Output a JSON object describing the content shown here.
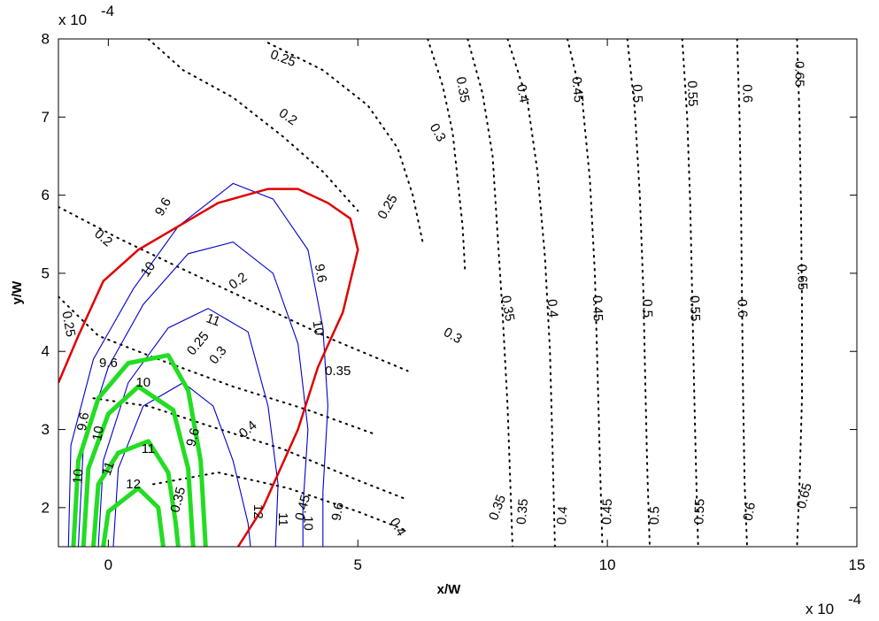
{
  "chart_data": {
    "type": "contour",
    "xlabel": "x/W",
    "ylabel": "y/W",
    "x_multiplier": "x 10",
    "x_multiplier_exp": "-4",
    "y_multiplier": "x 10",
    "y_multiplier_exp": "-4",
    "xlim": [
      -1.0,
      15.0
    ],
    "ylim": [
      1.5,
      8.0
    ],
    "x_ticks": [
      0,
      5,
      10,
      15
    ],
    "y_ticks": [
      2,
      3,
      4,
      5,
      6,
      7,
      8
    ],
    "grid": false,
    "colors": {
      "dotted_contours": "#000000",
      "blue_contours": "#0000cc",
      "red_curve": "#e00000",
      "green_contours": "#22dd22"
    },
    "dotted_contours": [
      {
        "level": "0.2",
        "points": [
          [
            -1.0,
            5.85
          ],
          [
            0.2,
            5.45
          ],
          [
            1.5,
            5.05
          ],
          [
            3.0,
            4.6
          ],
          [
            4.5,
            4.15
          ],
          [
            6.0,
            3.75
          ]
        ]
      },
      {
        "level": "0.2",
        "points": [
          [
            0.8,
            8.0
          ],
          [
            1.5,
            7.6
          ],
          [
            2.5,
            7.25
          ],
          [
            3.5,
            6.75
          ],
          [
            4.3,
            6.3
          ],
          [
            5.0,
            5.8
          ]
        ]
      },
      {
        "level": "0.25",
        "points": [
          [
            -1.0,
            4.7
          ],
          [
            -0.2,
            4.2
          ],
          [
            1.0,
            3.9
          ],
          [
            2.5,
            3.55
          ],
          [
            4.0,
            3.25
          ],
          [
            5.3,
            2.95
          ]
        ]
      },
      {
        "level": "0.25",
        "points": [
          [
            3.2,
            7.95
          ],
          [
            4.3,
            7.6
          ],
          [
            5.2,
            7.15
          ],
          [
            5.8,
            6.6
          ],
          [
            6.1,
            6.0
          ],
          [
            6.3,
            5.4
          ]
        ]
      },
      {
        "level": "0.3",
        "points": [
          [
            -0.3,
            3.4
          ],
          [
            0.8,
            3.3
          ],
          [
            2.0,
            3.05
          ],
          [
            3.5,
            2.75
          ],
          [
            5.0,
            2.35
          ],
          [
            6.0,
            2.1
          ]
        ]
      },
      {
        "level": "0.3",
        "points": [
          [
            6.4,
            8.0
          ],
          [
            6.7,
            7.4
          ],
          [
            6.9,
            6.8
          ],
          [
            7.0,
            6.2
          ],
          [
            7.1,
            5.6
          ],
          [
            7.15,
            5.0
          ]
        ]
      },
      {
        "level": "0.35",
        "points": [
          [
            0.9,
            2.3
          ],
          [
            2.2,
            2.45
          ],
          [
            3.6,
            2.25
          ],
          [
            5.0,
            1.95
          ],
          [
            6.0,
            1.7
          ]
        ]
      },
      {
        "level": "0.35",
        "points": [
          [
            7.2,
            8.0
          ],
          [
            7.5,
            7.3
          ],
          [
            7.7,
            6.5
          ],
          [
            7.8,
            5.5
          ],
          [
            7.9,
            4.5
          ],
          [
            8.0,
            3.3
          ],
          [
            8.1,
            1.5
          ]
        ]
      },
      {
        "level": "0.4",
        "points": [
          [
            8.0,
            8.0
          ],
          [
            8.4,
            7.2
          ],
          [
            8.6,
            6.3
          ],
          [
            8.75,
            5.2
          ],
          [
            8.85,
            4.0
          ],
          [
            8.9,
            2.8
          ],
          [
            8.95,
            1.5
          ]
        ]
      },
      {
        "level": "0.45",
        "points": [
          [
            9.2,
            8.0
          ],
          [
            9.5,
            7.2
          ],
          [
            9.65,
            6.2
          ],
          [
            9.75,
            5.0
          ],
          [
            9.8,
            3.8
          ],
          [
            9.85,
            2.6
          ],
          [
            9.9,
            1.5
          ]
        ]
      },
      {
        "level": "0.5",
        "points": [
          [
            10.4,
            8.0
          ],
          [
            10.55,
            7.1
          ],
          [
            10.65,
            6.0
          ],
          [
            10.72,
            4.8
          ],
          [
            10.76,
            3.6
          ],
          [
            10.8,
            2.5
          ],
          [
            10.85,
            1.5
          ]
        ]
      },
      {
        "level": "0.55",
        "points": [
          [
            11.5,
            8.0
          ],
          [
            11.6,
            7.0
          ],
          [
            11.66,
            5.9
          ],
          [
            11.7,
            4.7
          ],
          [
            11.74,
            3.5
          ],
          [
            11.78,
            2.4
          ],
          [
            11.82,
            1.5
          ]
        ]
      },
      {
        "level": "0.6",
        "points": [
          [
            12.6,
            8.0
          ],
          [
            12.65,
            7.0
          ],
          [
            12.68,
            5.8
          ],
          [
            12.7,
            4.6
          ],
          [
            12.72,
            3.4
          ],
          [
            12.75,
            2.3
          ],
          [
            12.8,
            1.5
          ]
        ]
      },
      {
        "level": "0.65",
        "points": [
          [
            13.8,
            8.0
          ],
          [
            13.85,
            7.0
          ],
          [
            13.88,
            5.8
          ],
          [
            13.9,
            4.6
          ],
          [
            13.9,
            3.4
          ],
          [
            13.85,
            2.3
          ],
          [
            13.8,
            1.5
          ]
        ]
      }
    ],
    "blue_contours": [
      {
        "level": "9.6",
        "points": [
          [
            -0.8,
            1.5
          ],
          [
            -0.75,
            2.8
          ],
          [
            -0.3,
            3.9
          ],
          [
            0.5,
            4.8
          ],
          [
            1.4,
            5.6
          ],
          [
            2.5,
            6.15
          ],
          [
            3.3,
            5.95
          ],
          [
            4.0,
            5.3
          ],
          [
            4.3,
            4.3
          ],
          [
            4.4,
            3.3
          ],
          [
            4.3,
            2.2
          ],
          [
            4.3,
            1.5
          ]
        ]
      },
      {
        "level": "10",
        "points": [
          [
            -0.6,
            1.5
          ],
          [
            -0.5,
            2.8
          ],
          [
            0.0,
            3.8
          ],
          [
            0.7,
            4.6
          ],
          [
            1.6,
            5.25
          ],
          [
            2.5,
            5.4
          ],
          [
            3.3,
            5.0
          ],
          [
            3.8,
            4.1
          ],
          [
            4.0,
            3.0
          ],
          [
            3.9,
            2.0
          ],
          [
            3.9,
            1.5
          ]
        ]
      },
      {
        "level": "11",
        "points": [
          [
            -0.2,
            1.5
          ],
          [
            -0.1,
            2.6
          ],
          [
            0.4,
            3.6
          ],
          [
            1.2,
            4.3
          ],
          [
            2.0,
            4.55
          ],
          [
            2.8,
            4.25
          ],
          [
            3.2,
            3.3
          ],
          [
            3.4,
            2.3
          ],
          [
            3.35,
            1.5
          ]
        ]
      },
      {
        "level": "12",
        "points": [
          [
            0.1,
            1.5
          ],
          [
            0.2,
            2.5
          ],
          [
            0.7,
            3.3
          ],
          [
            1.5,
            3.6
          ],
          [
            2.1,
            3.3
          ],
          [
            2.5,
            2.6
          ],
          [
            2.8,
            1.8
          ],
          [
            2.85,
            1.5
          ]
        ]
      }
    ],
    "red_curve": {
      "points": [
        [
          -1.0,
          3.6
        ],
        [
          -0.6,
          4.2
        ],
        [
          -0.1,
          4.9
        ],
        [
          0.6,
          5.3
        ],
        [
          1.4,
          5.6
        ],
        [
          2.2,
          5.9
        ],
        [
          3.2,
          6.08
        ],
        [
          3.8,
          6.08
        ],
        [
          4.4,
          5.9
        ],
        [
          4.85,
          5.7
        ],
        [
          5.0,
          5.3
        ],
        [
          4.7,
          4.5
        ],
        [
          4.2,
          3.8
        ],
        [
          3.8,
          3.0
        ],
        [
          3.1,
          2.0
        ],
        [
          2.6,
          1.5
        ]
      ]
    },
    "green_contours": [
      {
        "level": "9.6",
        "points": [
          [
            -0.7,
            1.5
          ],
          [
            -0.6,
            2.6
          ],
          [
            -0.2,
            3.4
          ],
          [
            0.4,
            3.85
          ],
          [
            1.2,
            3.95
          ],
          [
            1.6,
            3.5
          ],
          [
            1.85,
            2.6
          ],
          [
            1.95,
            1.5
          ]
        ]
      },
      {
        "level": "10",
        "points": [
          [
            -0.5,
            1.5
          ],
          [
            -0.4,
            2.5
          ],
          [
            0.0,
            3.2
          ],
          [
            0.6,
            3.55
          ],
          [
            1.3,
            3.25
          ],
          [
            1.6,
            2.5
          ],
          [
            1.7,
            1.5
          ]
        ]
      },
      {
        "level": "11",
        "points": [
          [
            -0.3,
            1.5
          ],
          [
            -0.2,
            2.3
          ],
          [
            0.2,
            2.7
          ],
          [
            0.8,
            2.85
          ],
          [
            1.2,
            2.45
          ],
          [
            1.35,
            1.8
          ],
          [
            1.4,
            1.5
          ]
        ]
      },
      {
        "level": "12",
        "points": [
          [
            -0.1,
            1.5
          ],
          [
            0.0,
            1.95
          ],
          [
            0.6,
            2.25
          ],
          [
            1.0,
            2.0
          ],
          [
            1.1,
            1.5
          ]
        ]
      }
    ],
    "labels": [
      {
        "text": "0.25",
        "x": 3.5,
        "y": 7.75,
        "rotate": 20
      },
      {
        "text": "0.2",
        "x": 3.6,
        "y": 7.0,
        "rotate": 35
      },
      {
        "text": "0.3",
        "x": 6.6,
        "y": 6.8,
        "rotate": 60
      },
      {
        "text": "0.35",
        "x": 7.1,
        "y": 7.35,
        "rotate": 80
      },
      {
        "text": "0.4",
        "x": 8.3,
        "y": 7.3,
        "rotate": 80
      },
      {
        "text": "0.45",
        "x": 9.4,
        "y": 7.35,
        "rotate": 85
      },
      {
        "text": "0.5",
        "x": 10.6,
        "y": 7.3,
        "rotate": 88
      },
      {
        "text": "0.55",
        "x": 11.7,
        "y": 7.3,
        "rotate": 88
      },
      {
        "text": "0.6",
        "x": 12.8,
        "y": 7.3,
        "rotate": 88
      },
      {
        "text": "0.65",
        "x": 13.85,
        "y": 7.55,
        "rotate": 90
      },
      {
        "text": "0.25",
        "x": 5.6,
        "y": 5.85,
        "rotate": -60
      },
      {
        "text": "0.2",
        "x": -0.1,
        "y": 5.45,
        "rotate": 40
      },
      {
        "text": "0.2",
        "x": 2.6,
        "y": 4.9,
        "rotate": -35
      },
      {
        "text": "0.35",
        "x": 8.0,
        "y": 4.55,
        "rotate": 80
      },
      {
        "text": "0.4",
        "x": 8.9,
        "y": 4.55,
        "rotate": 85
      },
      {
        "text": "0.45",
        "x": 9.8,
        "y": 4.55,
        "rotate": 88
      },
      {
        "text": "0.5",
        "x": 10.8,
        "y": 4.55,
        "rotate": 88
      },
      {
        "text": "0.55",
        "x": 11.75,
        "y": 4.55,
        "rotate": 88
      },
      {
        "text": "0.6",
        "x": 12.7,
        "y": 4.55,
        "rotate": 88
      },
      {
        "text": "0.65",
        "x": 13.9,
        "y": 4.95,
        "rotate": 88
      },
      {
        "text": "0.3",
        "x": 6.9,
        "y": 4.2,
        "rotate": 30
      },
      {
        "text": "0.35",
        "x": 4.6,
        "y": 3.75,
        "rotate": 0
      },
      {
        "text": "0.25",
        "x": -0.8,
        "y": 4.35,
        "rotate": 80
      },
      {
        "text": "0.25",
        "x": 1.8,
        "y": 4.1,
        "rotate": -50
      },
      {
        "text": "0.3",
        "x": 2.2,
        "y": 3.95,
        "rotate": -50
      },
      {
        "text": "0.4",
        "x": 2.8,
        "y": 3.0,
        "rotate": -40
      },
      {
        "text": "0.35",
        "x": 7.8,
        "y": 2.0,
        "rotate": -70
      },
      {
        "text": "0.35",
        "x": 8.3,
        "y": 1.95,
        "rotate": -85
      },
      {
        "text": "0.4",
        "x": 9.1,
        "y": 1.9,
        "rotate": -85
      },
      {
        "text": "0.45",
        "x": 10.0,
        "y": 1.95,
        "rotate": -88
      },
      {
        "text": "0.5",
        "x": 10.95,
        "y": 1.9,
        "rotate": -88
      },
      {
        "text": "0.55",
        "x": 11.85,
        "y": 1.95,
        "rotate": -88
      },
      {
        "text": "0.6",
        "x": 12.85,
        "y": 1.95,
        "rotate": -80
      },
      {
        "text": "0.65",
        "x": 13.95,
        "y": 2.15,
        "rotate": -75
      },
      {
        "text": "0.4",
        "x": 5.8,
        "y": 1.75,
        "rotate": 60
      },
      {
        "text": "9.6",
        "x": 1.1,
        "y": 5.85,
        "rotate": -60
      },
      {
        "text": "10",
        "x": 0.8,
        "y": 5.05,
        "rotate": -55
      },
      {
        "text": "11",
        "x": 2.1,
        "y": 4.4,
        "rotate": 20
      },
      {
        "text": "10",
        "x": 4.2,
        "y": 4.3,
        "rotate": 80
      },
      {
        "text": "9.6",
        "x": 4.25,
        "y": 5.0,
        "rotate": 80
      },
      {
        "text": "12",
        "x": 3.0,
        "y": 1.95,
        "rotate": 90
      },
      {
        "text": "11",
        "x": 3.5,
        "y": 1.85,
        "rotate": 90
      },
      {
        "text": "10",
        "x": 4.0,
        "y": 1.8,
        "rotate": 90
      },
      {
        "text": "9.6",
        "x": 4.6,
        "y": 1.95,
        "rotate": -80
      },
      {
        "text": "0.45",
        "x": 3.9,
        "y": 2.0,
        "rotate": -75
      },
      {
        "text": "9.6",
        "x": 0.0,
        "y": 3.85,
        "rotate": 0
      },
      {
        "text": "9.6",
        "x": -0.5,
        "y": 3.1,
        "rotate": -80
      },
      {
        "text": "10",
        "x": -0.2,
        "y": 2.95,
        "rotate": -80
      },
      {
        "text": "10",
        "x": 0.7,
        "y": 3.6,
        "rotate": 0
      },
      {
        "text": "11",
        "x": 0.8,
        "y": 2.75,
        "rotate": 0
      },
      {
        "text": "12",
        "x": 0.5,
        "y": 2.3,
        "rotate": 0
      },
      {
        "text": "11",
        "x": 0.0,
        "y": 2.5,
        "rotate": -70
      },
      {
        "text": "10",
        "x": -0.6,
        "y": 2.4,
        "rotate": -85
      },
      {
        "text": "9.6",
        "x": 1.7,
        "y": 2.9,
        "rotate": -75
      },
      {
        "text": "0.35",
        "x": 1.4,
        "y": 2.1,
        "rotate": -75
      }
    ]
  }
}
